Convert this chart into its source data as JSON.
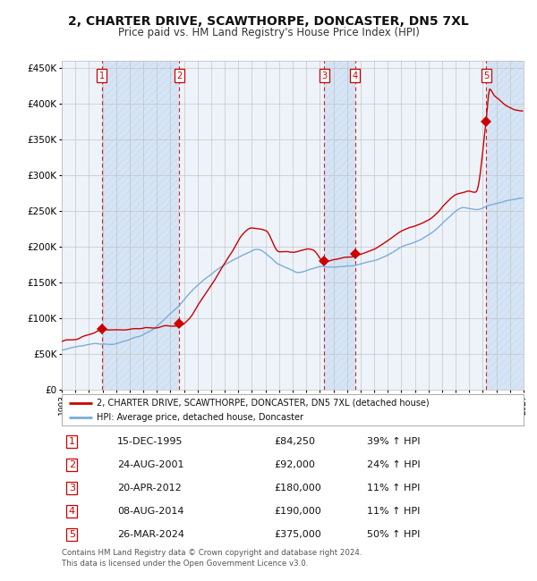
{
  "title": "2, CHARTER DRIVE, SCAWTHORPE, DONCASTER, DN5 7XL",
  "subtitle": "Price paid vs. HM Land Registry's House Price Index (HPI)",
  "title_fontsize": 10,
  "subtitle_fontsize": 8.5,
  "x_start_year": 1993,
  "x_end_year": 2027,
  "y_min": 0,
  "y_max": 460000,
  "y_ticks": [
    0,
    50000,
    100000,
    150000,
    200000,
    250000,
    300000,
    350000,
    400000,
    450000
  ],
  "y_tick_labels": [
    "£0",
    "£50K",
    "£100K",
    "£150K",
    "£200K",
    "£250K",
    "£300K",
    "£350K",
    "£400K",
    "£450K"
  ],
  "sales": [
    {
      "id": 1,
      "date_dec": 1995.96,
      "price": 84250,
      "label": "1"
    },
    {
      "id": 2,
      "date_dec": 2001.65,
      "price": 92000,
      "label": "2"
    },
    {
      "id": 3,
      "date_dec": 2012.31,
      "price": 180000,
      "label": "3"
    },
    {
      "id": 4,
      "date_dec": 2014.6,
      "price": 190000,
      "label": "4"
    },
    {
      "id": 5,
      "date_dec": 2024.24,
      "price": 375000,
      "label": "5"
    }
  ],
  "legend_entries": [
    {
      "label": "2, CHARTER DRIVE, SCAWTHORPE, DONCASTER, DN5 7XL (detached house)",
      "color": "#cc0000"
    },
    {
      "label": "HPI: Average price, detached house, Doncaster",
      "color": "#6699cc"
    }
  ],
  "table_rows": [
    {
      "num": "1",
      "date": "15-DEC-1995",
      "price": "£84,250",
      "hpi": "39% ↑ HPI"
    },
    {
      "num": "2",
      "date": "24-AUG-2001",
      "price": "£92,000",
      "hpi": "24% ↑ HPI"
    },
    {
      "num": "3",
      "date": "20-APR-2012",
      "price": "£180,000",
      "hpi": "11% ↑ HPI"
    },
    {
      "num": "4",
      "date": "08-AUG-2014",
      "price": "£190,000",
      "hpi": "11% ↑ HPI"
    },
    {
      "num": "5",
      "date": "26-MAR-2024",
      "price": "£375,000",
      "hpi": "50% ↑ HPI"
    }
  ],
  "footer_line1": "Contains HM Land Registry data © Crown copyright and database right 2024.",
  "footer_line2": "This data is licensed under the Open Government Licence v3.0.",
  "bg_color": "#ffffff",
  "plot_bg_color": "#eef3fa",
  "shade_color": "#d5e5f5",
  "grid_color": "#bbbbbb",
  "hpi_line_color": "#7aaed6",
  "price_line_color": "#cc0000",
  "sale_dot_color": "#cc0000",
  "dashed_line_color": "#cc0000",
  "box_edge_color": "#cc0000"
}
